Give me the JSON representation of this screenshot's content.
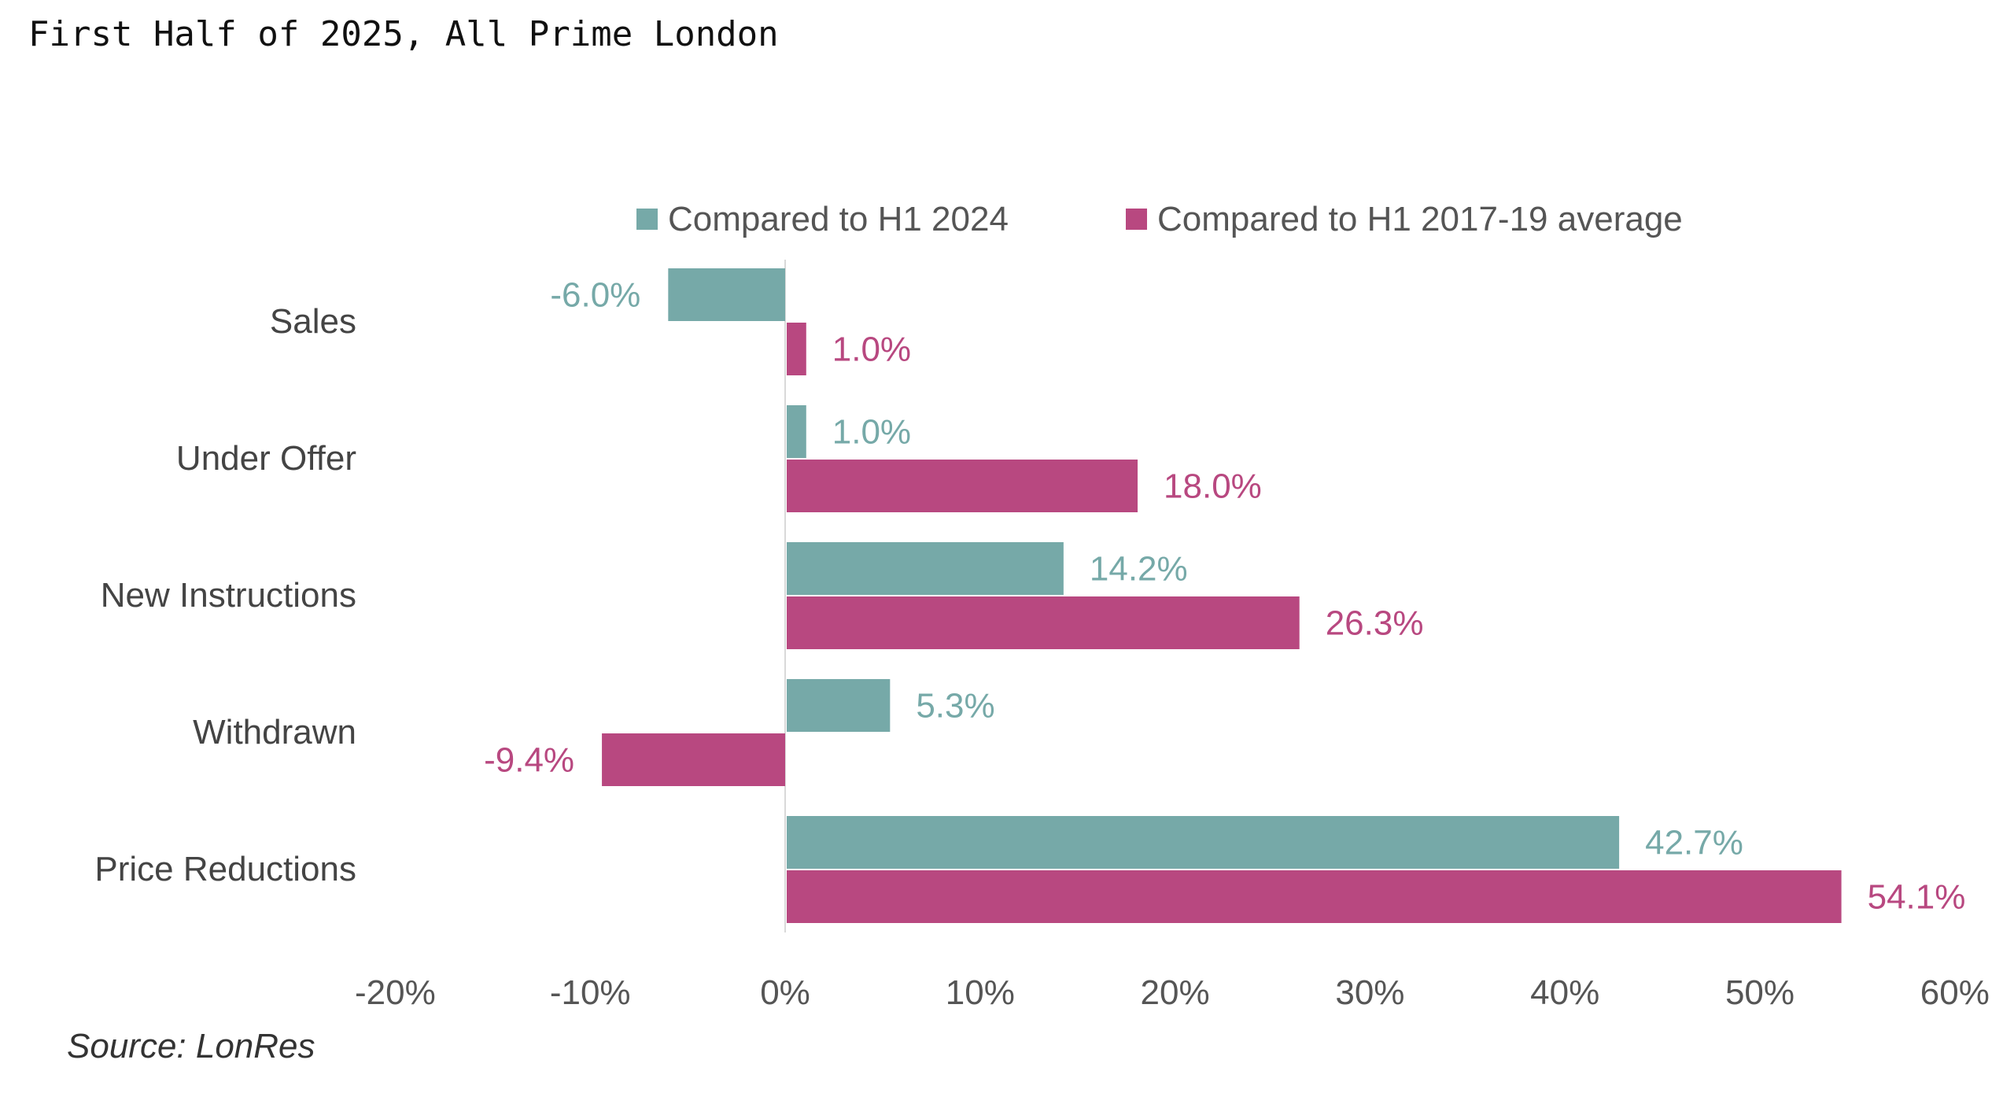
{
  "page_title": "First Half of 2025, All Prime London",
  "source": "Source: LonRes",
  "chart_data": {
    "type": "bar",
    "orientation": "horizontal",
    "title": "",
    "xlabel": "",
    "ylabel": "",
    "categories": [
      "Sales",
      "Under Offer",
      "New Instructions",
      "Withdrawn",
      "Price Reductions"
    ],
    "series": [
      {
        "name": "Compared to H1 2024",
        "color": "#76A9A8",
        "values": [
          -6.0,
          1.0,
          14.2,
          5.3,
          42.7
        ],
        "labels": [
          "-6.0%",
          "1.0%",
          "14.2%",
          "5.3%",
          "42.7%"
        ]
      },
      {
        "name": "Compared to H1 2017-19 average",
        "color": "#B84880",
        "values": [
          1.0,
          18.0,
          26.3,
          -9.4,
          54.1
        ],
        "labels": [
          "1.0%",
          "18.0%",
          "26.3%",
          "-9.4%",
          "54.1%"
        ]
      }
    ],
    "xlim": [
      -20,
      60
    ],
    "xticks": [
      -20,
      -10,
      0,
      10,
      20,
      30,
      40,
      50,
      60
    ],
    "xtick_labels": [
      "-20%",
      "-10%",
      "0%",
      "10%",
      "20%",
      "30%",
      "40%",
      "50%",
      "60%"
    ],
    "grid": false,
    "legend": "top"
  }
}
